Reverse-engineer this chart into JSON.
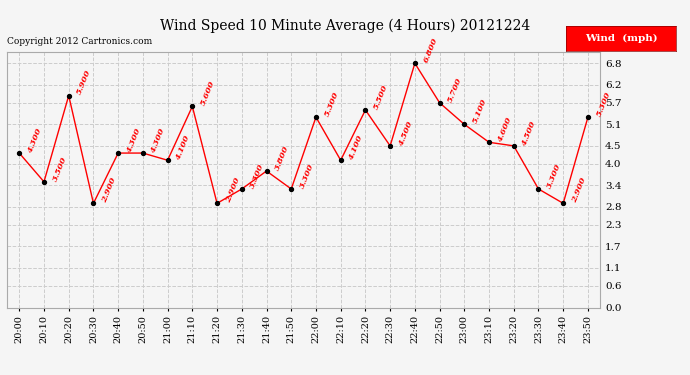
{
  "title": "Wind Speed 10 Minute Average (4 Hours) 20121224",
  "copyright": "Copyright 2012 Cartronics.com",
  "legend_label": "Wind  (mph)",
  "times": [
    "20:00",
    "20:10",
    "20:20",
    "20:30",
    "20:40",
    "20:50",
    "21:00",
    "21:10",
    "21:20",
    "21:30",
    "21:40",
    "21:50",
    "22:00",
    "22:10",
    "22:20",
    "22:30",
    "22:40",
    "22:50",
    "23:00",
    "23:10",
    "23:20",
    "23:30",
    "23:40",
    "23:50"
  ],
  "values": [
    4.3,
    3.5,
    5.9,
    2.9,
    4.3,
    4.3,
    4.1,
    5.6,
    2.9,
    3.3,
    3.8,
    3.3,
    5.3,
    4.1,
    5.5,
    4.5,
    6.8,
    5.7,
    5.1,
    4.6,
    4.5,
    3.3,
    2.9,
    5.3
  ],
  "labels": [
    "4.300",
    "3.500",
    "5.900",
    "2.900",
    "4.300",
    "4.300",
    "4.100",
    "5.600",
    "2.900",
    "3.300",
    "3.800",
    "3.300",
    "5.300",
    "4.100",
    "5.500",
    "4.500",
    "6.800",
    "5.700",
    "5.100",
    "4.600",
    "4.500",
    "3.300",
    "2.900",
    "5.300"
  ],
  "ylim": [
    0.0,
    7.1
  ],
  "yticks": [
    0.0,
    0.6,
    1.1,
    1.7,
    2.3,
    2.8,
    3.4,
    4.0,
    4.5,
    5.1,
    5.7,
    6.2,
    6.8
  ],
  "line_color": "red",
  "marker_color": "black",
  "bg_color": "#f5f5f5",
  "grid_color": "#cccccc",
  "title_fontsize": 10,
  "label_fontsize": 6,
  "tick_fontsize": 7,
  "legend_bg": "red",
  "legend_text_color": "white"
}
